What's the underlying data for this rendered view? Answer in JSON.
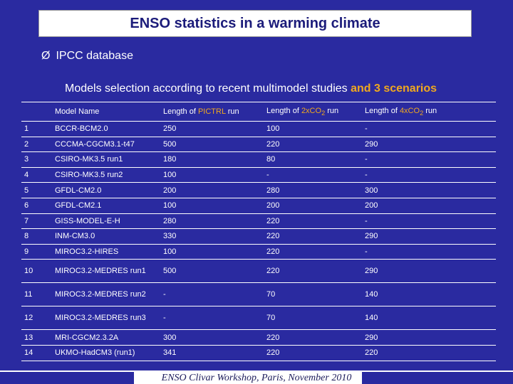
{
  "title": "ENSO statistics in a warming climate",
  "bullet": {
    "arrow": "Ø",
    "text": "IPCC database"
  },
  "subtitle": {
    "text": "Models selection according to recent multimodel studies",
    "highlight": "and 3 scenarios"
  },
  "table": {
    "headers": {
      "num": "",
      "model": "Model Name",
      "pictrl_pre": "Length of ",
      "pictrl_hl": "PICTRL",
      "pictrl_post": " run",
      "co2x2_pre": "Length of ",
      "co2x2_hl": "2xCO",
      "co2x2_sub": "2",
      "co2x2_post": " run",
      "co2x4_pre": "Length of ",
      "co2x4_hl": "4xCO",
      "co2x4_sub": "2",
      "co2x4_post": " run"
    },
    "rows": [
      {
        "n": "1",
        "model": "BCCR-BCM2.0",
        "pictrl": "250",
        "x2": "100",
        "x4": "-"
      },
      {
        "n": "2",
        "model": "CCCMA-CGCM3.1-t47",
        "pictrl": "500",
        "x2": "220",
        "x4": "290"
      },
      {
        "n": "3",
        "model": "CSIRO-MK3.5 run1",
        "pictrl": "180",
        "x2": "80",
        "x4": "-"
      },
      {
        "n": "4",
        "model": "CSIRO-MK3.5 run2",
        "pictrl": "100",
        "x2": "-",
        "x4": "-"
      },
      {
        "n": "5",
        "model": "GFDL-CM2.0",
        "pictrl": "200",
        "x2": "280",
        "x4": "300"
      },
      {
        "n": "6",
        "model": "GFDL-CM2.1",
        "pictrl": "100",
        "x2": "200",
        "x4": "200"
      },
      {
        "n": "7",
        "model": "GISS-MODEL-E-H",
        "pictrl": "280",
        "x2": "220",
        "x4": "-"
      },
      {
        "n": "8",
        "model": "INM-CM3.0",
        "pictrl": "330",
        "x2": "220",
        "x4": "290"
      },
      {
        "n": "9",
        "model": "MIROC3.2-HIRES",
        "pictrl": "100",
        "x2": "220",
        "x4": "-"
      },
      {
        "n": "10",
        "model": "MIROC3.2-MEDRES run1",
        "pictrl": "500",
        "x2": "220",
        "x4": "290"
      },
      {
        "n": "11",
        "model": "MIROC3.2-MEDRES run2",
        "pictrl": "-",
        "x2": "70",
        "x4": "140"
      },
      {
        "n": "12",
        "model": "MIROC3.2-MEDRES run3",
        "pictrl": "-",
        "x2": "70",
        "x4": "140"
      },
      {
        "n": "13",
        "model": "MRI-CGCM2.3.2A",
        "pictrl": "300",
        "x2": "220",
        "x4": "290"
      },
      {
        "n": "14",
        "model": "UKMO-HadCM3 (run1)",
        "pictrl": "341",
        "x2": "220",
        "x4": "220"
      }
    ]
  },
  "footer": "ENSO Clivar Workshop, Paris, November 2010",
  "colors": {
    "background": "#2a2aa0",
    "highlight": "#f0a81e",
    "title_text": "#1b1b7a"
  }
}
